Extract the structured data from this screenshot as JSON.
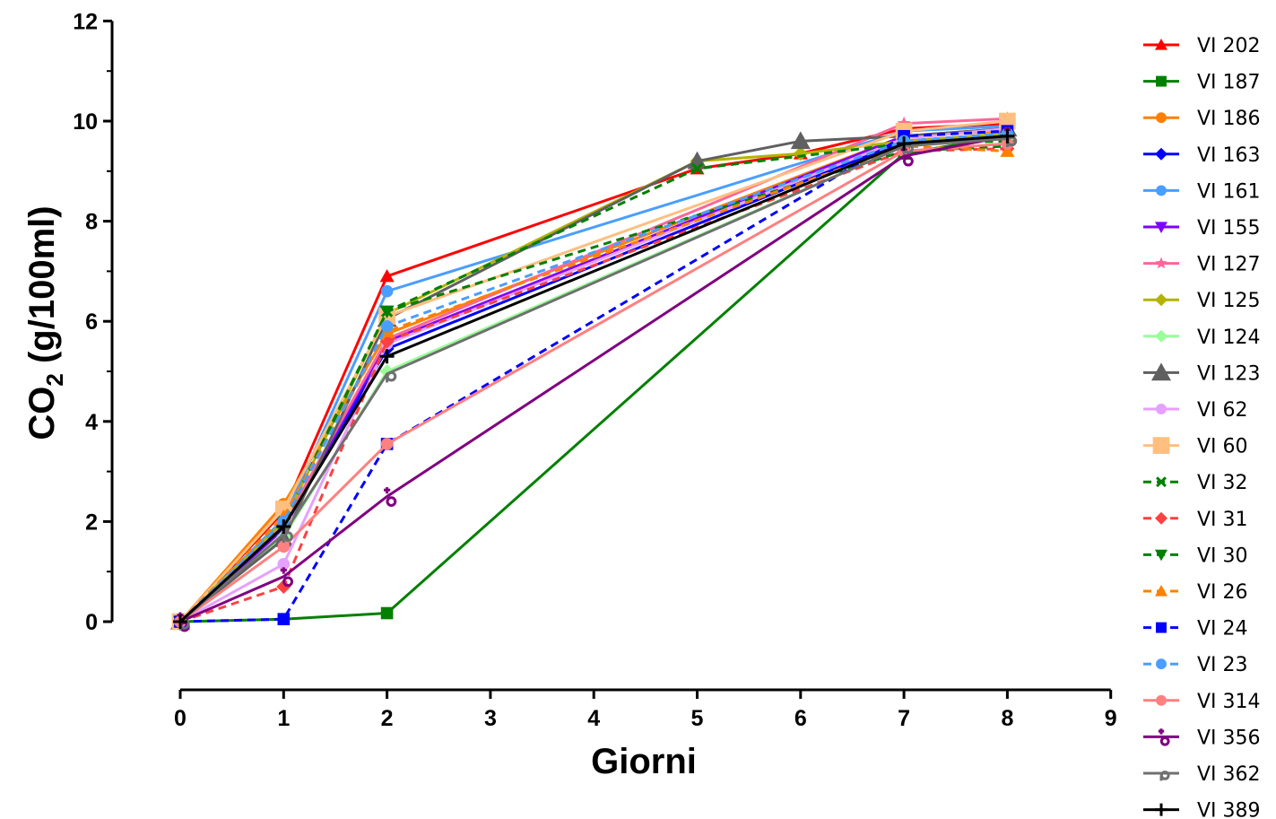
{
  "chart_data": {
    "type": "line",
    "title": "",
    "xlabel": "Giorni",
    "ylabel_main": "CO",
    "ylabel_sub": "2",
    "ylabel_rest": " (g/100ml)",
    "xlim": [
      0,
      9
    ],
    "ylim": [
      0,
      12
    ],
    "x_ticks": [
      0,
      1,
      2,
      3,
      4,
      5,
      6,
      7,
      8,
      9
    ],
    "y_ticks": [
      0,
      2,
      4,
      6,
      8,
      10,
      12
    ],
    "x_ticks_text": [
      "0",
      "1",
      "2",
      "3",
      "4",
      "5",
      "6",
      "7",
      "8",
      "9"
    ],
    "y_ticks_text": [
      "0",
      "2",
      "4",
      "6",
      "8",
      "10",
      "12"
    ],
    "grid": false,
    "legend_position": "right",
    "x": [
      0,
      1,
      2,
      5,
      6,
      7,
      8
    ],
    "series": [
      {
        "name": "VI 202",
        "color": "#ff0000",
        "marker": "triangle",
        "dash": false,
        "values": [
          0,
          2.2,
          6.9,
          9.05,
          9.35,
          9.85,
          9.95
        ]
      },
      {
        "name": "VI 187",
        "color": "#008000",
        "marker": "square",
        "dash": false,
        "values": [
          0,
          0.05,
          0.17,
          null,
          null,
          9.35,
          9.7
        ]
      },
      {
        "name": "VI 186",
        "color": "#ff8000",
        "marker": "circle",
        "dash": false,
        "values": [
          0,
          2.35,
          5.75,
          null,
          null,
          9.7,
          9.8
        ]
      },
      {
        "name": "VI 163",
        "color": "#0000ff",
        "marker": "diamond",
        "dash": false,
        "values": [
          0,
          1.9,
          5.45,
          null,
          null,
          9.6,
          9.75
        ]
      },
      {
        "name": "VI 161",
        "color": "#4a9eff",
        "marker": "circle",
        "dash": false,
        "values": [
          0,
          2.05,
          6.6,
          null,
          null,
          9.8,
          9.9
        ]
      },
      {
        "name": "VI 155",
        "color": "#8000ff",
        "marker": "triangle-down",
        "dash": false,
        "values": [
          0,
          1.85,
          5.6,
          null,
          null,
          9.7,
          9.85
        ]
      },
      {
        "name": "VI 127",
        "color": "#ff6699",
        "marker": "star",
        "dash": false,
        "values": [
          0,
          1.95,
          5.65,
          null,
          null,
          9.95,
          10.05
        ]
      },
      {
        "name": "VI 125",
        "color": "#b3b300",
        "marker": "diamond",
        "dash": false,
        "values": [
          0,
          2.0,
          6.15,
          9.2,
          9.35,
          9.6,
          9.75
        ]
      },
      {
        "name": "VI 124",
        "color": "#99ff99",
        "marker": "diamond",
        "dash": false,
        "values": [
          0,
          1.7,
          5.0,
          null,
          null,
          9.5,
          9.65
        ]
      },
      {
        "name": "VI 123",
        "color": "#606060",
        "marker": "triangle",
        "dash": false,
        "values": [
          0,
          1.65,
          6.05,
          9.2,
          9.6,
          9.7,
          9.85
        ]
      },
      {
        "name": "VI 62",
        "color": "#e6a0ff",
        "marker": "circle",
        "dash": false,
        "values": [
          0,
          1.15,
          5.55,
          null,
          null,
          9.65,
          9.85
        ]
      },
      {
        "name": "VI 60",
        "color": "#ffbf80",
        "marker": "square",
        "dash": false,
        "values": [
          0,
          2.25,
          6.1,
          null,
          null,
          9.8,
          10.0
        ]
      },
      {
        "name": "VI 32",
        "color": "#008000",
        "marker": "x",
        "dash": true,
        "values": [
          0,
          2.0,
          6.2,
          9.05,
          null,
          9.55,
          9.6
        ]
      },
      {
        "name": "VI 31",
        "color": "#ff4040",
        "marker": "diamond",
        "dash": true,
        "values": [
          0,
          0.7,
          5.6,
          null,
          null,
          9.4,
          9.45
        ]
      },
      {
        "name": "VI 30",
        "color": "#008000",
        "marker": "triangle-down",
        "dash": true,
        "values": [
          0,
          1.95,
          6.2,
          null,
          null,
          9.4,
          9.5
        ]
      },
      {
        "name": "VI 26",
        "color": "#ff8000",
        "marker": "triangle",
        "dash": true,
        "values": [
          0,
          2.1,
          5.8,
          null,
          null,
          9.5,
          9.4
        ]
      },
      {
        "name": "VI 24",
        "color": "#0000ff",
        "marker": "square",
        "dash": true,
        "values": [
          0,
          0.05,
          3.55,
          null,
          null,
          9.7,
          9.8
        ]
      },
      {
        "name": "VI 23",
        "color": "#4a9eff",
        "marker": "circle",
        "dash": true,
        "values": [
          0,
          2.0,
          5.9,
          null,
          null,
          9.6,
          9.75
        ]
      },
      {
        "name": "VI 314",
        "color": "#ff8080",
        "marker": "circle",
        "dash": false,
        "values": [
          0,
          1.5,
          3.55,
          null,
          null,
          9.4,
          9.55
        ]
      },
      {
        "name": "VI 356",
        "color": "#800080",
        "marker": "female",
        "dash": false,
        "values": [
          0,
          0.9,
          2.5,
          null,
          null,
          9.3,
          9.7
        ]
      },
      {
        "name": "VI 362",
        "color": "#707070",
        "marker": "male-down",
        "dash": false,
        "values": [
          0,
          1.75,
          4.95,
          null,
          null,
          9.5,
          9.65
        ]
      },
      {
        "name": "VI 389",
        "color": "#000000",
        "marker": "plus",
        "dash": false,
        "values": [
          0,
          1.9,
          5.3,
          null,
          null,
          9.55,
          9.7
        ]
      }
    ]
  }
}
